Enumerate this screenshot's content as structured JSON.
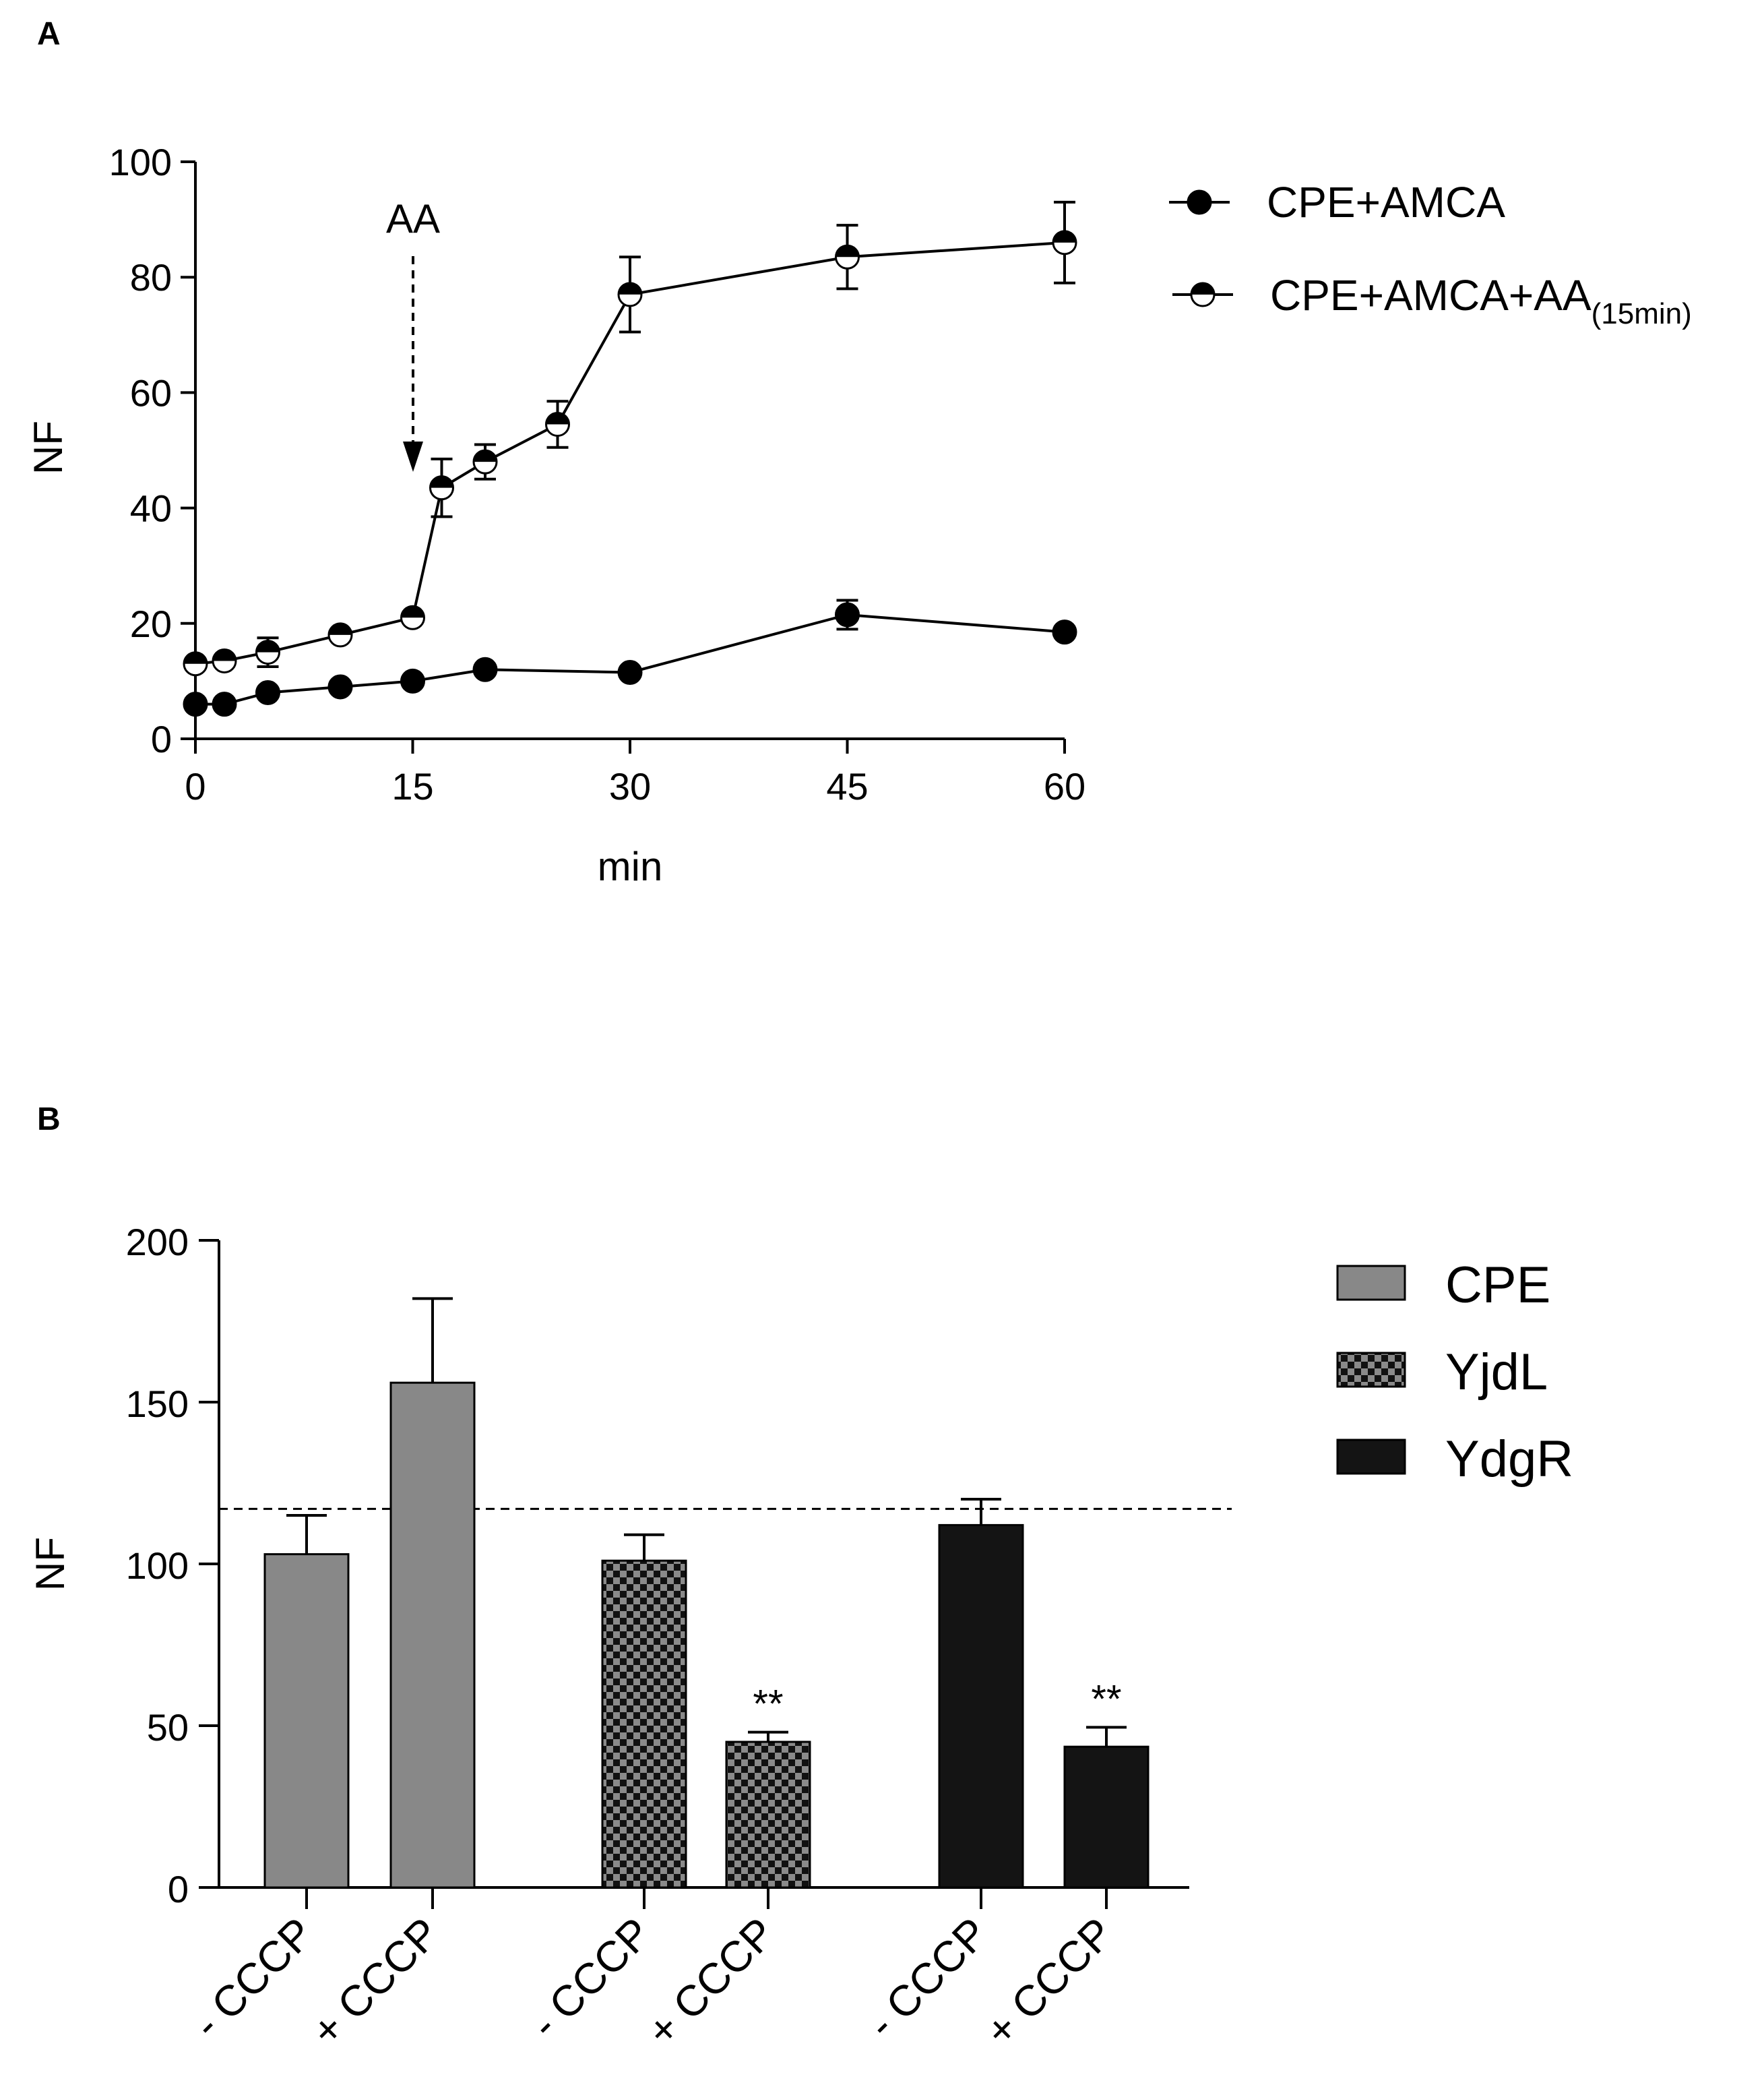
{
  "figure": {
    "panel_a_letter": "A",
    "panel_b_letter": "B"
  },
  "chart_data": [
    {
      "type": "line",
      "panel": "A",
      "xlabel": "min",
      "ylabel": "NF",
      "xlim": [
        0,
        60
      ],
      "ylim": [
        0,
        100
      ],
      "x_ticks": [
        0,
        15,
        30,
        45,
        60
      ],
      "y_ticks": [
        0,
        20,
        40,
        60,
        80,
        100
      ],
      "grid": false,
      "legend_position": "top-right",
      "annotation": {
        "text": "AA",
        "x": 15,
        "arrow_to_y": 47
      },
      "series": [
        {
          "name": "CPE+AMCA",
          "marker": "filled-circle",
          "color": "#000000",
          "points": [
            {
              "x": 0,
              "y": 6,
              "err": 0
            },
            {
              "x": 2,
              "y": 6,
              "err": 0
            },
            {
              "x": 5,
              "y": 8,
              "err": 0
            },
            {
              "x": 10,
              "y": 9,
              "err": 0
            },
            {
              "x": 15,
              "y": 10,
              "err": 0
            },
            {
              "x": 20,
              "y": 12,
              "err": 0
            },
            {
              "x": 30,
              "y": 11.5,
              "err": 0
            },
            {
              "x": 45,
              "y": 21.5,
              "err": 2.5
            },
            {
              "x": 60,
              "y": 18.5,
              "err": 0
            }
          ]
        },
        {
          "name": "CPE+AMCA+AA",
          "name_subscript": "(15min)",
          "marker": "half-filled-circle",
          "color": "#000000",
          "points": [
            {
              "x": 0,
              "y": 13,
              "err": 0
            },
            {
              "x": 2,
              "y": 13.5,
              "err": 0
            },
            {
              "x": 5,
              "y": 15,
              "err": 2.5
            },
            {
              "x": 10,
              "y": 18,
              "err": 0
            },
            {
              "x": 15,
              "y": 21,
              "err": 0
            },
            {
              "x": 17,
              "y": 43.5,
              "err": 5
            },
            {
              "x": 20,
              "y": 48,
              "err": 3
            },
            {
              "x": 25,
              "y": 54.5,
              "err": 4
            },
            {
              "x": 30,
              "y": 77,
              "err": 6.5
            },
            {
              "x": 45,
              "y": 83.5,
              "err": 5.5
            },
            {
              "x": 60,
              "y": 86,
              "err": 7
            }
          ]
        }
      ]
    },
    {
      "type": "bar",
      "panel": "B",
      "ylabel": "NF",
      "ylim": [
        0,
        200
      ],
      "y_ticks": [
        0,
        50,
        100,
        150,
        200
      ],
      "grid": false,
      "legend_position": "top-right",
      "reference_line": 117,
      "categories": [
        "- CCCP",
        "+ CCCP",
        "- CCCP",
        "+ CCCP",
        "- CCCP",
        "+ CCCP"
      ],
      "groups": [
        {
          "name": "CPE",
          "color": "#888888",
          "pattern": "solid"
        },
        {
          "name": "YjdL",
          "color": "#555555",
          "pattern": "checker"
        },
        {
          "name": "YdgR",
          "color": "#141414",
          "pattern": "solid"
        }
      ],
      "bars": [
        {
          "group": 0,
          "value": 103,
          "err": 12,
          "sig": ""
        },
        {
          "group": 0,
          "value": 156,
          "err": 26,
          "sig": ""
        },
        {
          "group": 1,
          "value": 101,
          "err": 8,
          "sig": ""
        },
        {
          "group": 1,
          "value": 45,
          "err": 3,
          "sig": "**"
        },
        {
          "group": 2,
          "value": 112,
          "err": 8,
          "sig": ""
        },
        {
          "group": 2,
          "value": 43.5,
          "err": 6,
          "sig": "**"
        }
      ]
    }
  ]
}
